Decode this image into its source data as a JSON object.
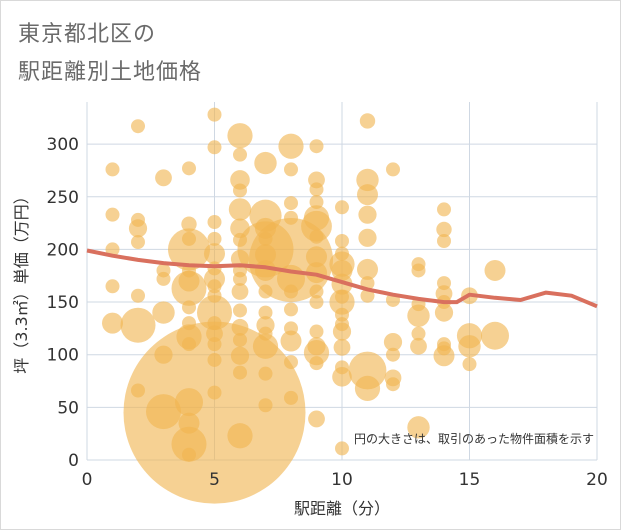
{
  "title_line1": "東京都北区の",
  "title_line2": "駅距離別土地価格",
  "chart_data": {
    "type": "scatter",
    "title": "東京都北区の駅距離別土地価格",
    "xlabel": "駅距離（分）",
    "ylabel": "坪（3.3㎡）単価（万円）",
    "xlim": [
      0,
      20
    ],
    "ylim": [
      0,
      340
    ],
    "xticks": [
      0,
      5,
      10,
      15,
      20
    ],
    "yticks": [
      0,
      50,
      100,
      150,
      200,
      250,
      300
    ],
    "grid": true,
    "note": "円の大きさは、取引のあった物件面積を示す",
    "bubble_color": "#f0b450",
    "line_color": "#d9705e",
    "points": [
      {
        "x": 1,
        "y": 276,
        "s": 1
      },
      {
        "x": 1,
        "y": 233,
        "s": 1
      },
      {
        "x": 1,
        "y": 200,
        "s": 1
      },
      {
        "x": 1,
        "y": 165,
        "s": 1
      },
      {
        "x": 1,
        "y": 130,
        "s": 1.5
      },
      {
        "x": 2,
        "y": 317,
        "s": 1
      },
      {
        "x": 2,
        "y": 228,
        "s": 1
      },
      {
        "x": 2,
        "y": 220,
        "s": 1.3
      },
      {
        "x": 2,
        "y": 207,
        "s": 1
      },
      {
        "x": 2,
        "y": 156,
        "s": 1
      },
      {
        "x": 2,
        "y": 128,
        "s": 2.5
      },
      {
        "x": 2,
        "y": 66,
        "s": 1
      },
      {
        "x": 3,
        "y": 268,
        "s": 1.2
      },
      {
        "x": 3,
        "y": 180,
        "s": 1
      },
      {
        "x": 3,
        "y": 172,
        "s": 1
      },
      {
        "x": 3,
        "y": 140,
        "s": 1.6
      },
      {
        "x": 3,
        "y": 100,
        "s": 1.3
      },
      {
        "x": 3,
        "y": 46,
        "s": 2.5
      },
      {
        "x": 4,
        "y": 277,
        "s": 1
      },
      {
        "x": 4,
        "y": 224,
        "s": 1.1
      },
      {
        "x": 4,
        "y": 210,
        "s": 1
      },
      {
        "x": 4,
        "y": 200,
        "s": 3
      },
      {
        "x": 4,
        "y": 180,
        "s": 1
      },
      {
        "x": 4,
        "y": 170,
        "s": 1.5
      },
      {
        "x": 4,
        "y": 163,
        "s": 2.5
      },
      {
        "x": 4,
        "y": 145,
        "s": 1
      },
      {
        "x": 4,
        "y": 130,
        "s": 1
      },
      {
        "x": 4,
        "y": 117,
        "s": 1.8
      },
      {
        "x": 4,
        "y": 110,
        "s": 1
      },
      {
        "x": 4,
        "y": 55,
        "s": 2
      },
      {
        "x": 4,
        "y": 35,
        "s": 1.5
      },
      {
        "x": 4,
        "y": 15,
        "s": 2.5
      },
      {
        "x": 4,
        "y": 5,
        "s": 1
      },
      {
        "x": 5,
        "y": 328,
        "s": 1
      },
      {
        "x": 5,
        "y": 297,
        "s": 1
      },
      {
        "x": 5,
        "y": 226,
        "s": 1
      },
      {
        "x": 5,
        "y": 210,
        "s": 1
      },
      {
        "x": 5,
        "y": 196,
        "s": 1.5
      },
      {
        "x": 5,
        "y": 182,
        "s": 1
      },
      {
        "x": 5,
        "y": 172,
        "s": 1.5
      },
      {
        "x": 5,
        "y": 165,
        "s": 1
      },
      {
        "x": 5,
        "y": 156,
        "s": 1
      },
      {
        "x": 5,
        "y": 140,
        "s": 2.5
      },
      {
        "x": 5,
        "y": 130,
        "s": 1
      },
      {
        "x": 5,
        "y": 120,
        "s": 1.2
      },
      {
        "x": 5,
        "y": 110,
        "s": 1
      },
      {
        "x": 5,
        "y": 95,
        "s": 1
      },
      {
        "x": 5,
        "y": 64,
        "s": 1
      },
      {
        "x": 5,
        "y": 45,
        "s": 13
      },
      {
        "x": 6,
        "y": 308,
        "s": 1.8
      },
      {
        "x": 6,
        "y": 290,
        "s": 1
      },
      {
        "x": 6,
        "y": 266,
        "s": 1.4
      },
      {
        "x": 6,
        "y": 256,
        "s": 1
      },
      {
        "x": 6,
        "y": 238,
        "s": 1.6
      },
      {
        "x": 6,
        "y": 220,
        "s": 1.4
      },
      {
        "x": 6,
        "y": 209,
        "s": 1
      },
      {
        "x": 6,
        "y": 191,
        "s": 1.3
      },
      {
        "x": 6,
        "y": 180,
        "s": 1
      },
      {
        "x": 6,
        "y": 172,
        "s": 1
      },
      {
        "x": 6,
        "y": 160,
        "s": 1.2
      },
      {
        "x": 6,
        "y": 142,
        "s": 1
      },
      {
        "x": 6,
        "y": 126,
        "s": 1.2
      },
      {
        "x": 6,
        "y": 114,
        "s": 1
      },
      {
        "x": 6,
        "y": 99,
        "s": 1.3
      },
      {
        "x": 6,
        "y": 83,
        "s": 1
      },
      {
        "x": 6,
        "y": 23,
        "s": 1.8
      },
      {
        "x": 7,
        "y": 282,
        "s": 1.6
      },
      {
        "x": 7,
        "y": 232,
        "s": 2.3
      },
      {
        "x": 7,
        "y": 220,
        "s": 1.5
      },
      {
        "x": 7,
        "y": 210,
        "s": 1
      },
      {
        "x": 7,
        "y": 200,
        "s": 4
      },
      {
        "x": 7,
        "y": 195,
        "s": 1.5
      },
      {
        "x": 7,
        "y": 180,
        "s": 1.5
      },
      {
        "x": 7,
        "y": 160,
        "s": 1
      },
      {
        "x": 7,
        "y": 140,
        "s": 1
      },
      {
        "x": 7,
        "y": 128,
        "s": 1.3
      },
      {
        "x": 7,
        "y": 120,
        "s": 1
      },
      {
        "x": 7,
        "y": 108,
        "s": 1.8
      },
      {
        "x": 7,
        "y": 82,
        "s": 1
      },
      {
        "x": 7,
        "y": 52,
        "s": 1
      },
      {
        "x": 8,
        "y": 298,
        "s": 1.8
      },
      {
        "x": 8,
        "y": 276,
        "s": 1
      },
      {
        "x": 8,
        "y": 244,
        "s": 1
      },
      {
        "x": 8,
        "y": 230,
        "s": 1
      },
      {
        "x": 8,
        "y": 190,
        "s": 6
      },
      {
        "x": 8,
        "y": 172,
        "s": 2
      },
      {
        "x": 8,
        "y": 160,
        "s": 1
      },
      {
        "x": 8,
        "y": 143,
        "s": 1
      },
      {
        "x": 8,
        "y": 125,
        "s": 1
      },
      {
        "x": 8,
        "y": 113,
        "s": 1.5
      },
      {
        "x": 8,
        "y": 93,
        "s": 1
      },
      {
        "x": 8,
        "y": 59,
        "s": 1
      },
      {
        "x": 9,
        "y": 298,
        "s": 1
      },
      {
        "x": 9,
        "y": 266,
        "s": 1.2
      },
      {
        "x": 9,
        "y": 257,
        "s": 1
      },
      {
        "x": 9,
        "y": 245,
        "s": 1
      },
      {
        "x": 9,
        "y": 230,
        "s": 1.8
      },
      {
        "x": 9,
        "y": 222,
        "s": 2.2
      },
      {
        "x": 9,
        "y": 212,
        "s": 1
      },
      {
        "x": 9,
        "y": 193,
        "s": 1.5
      },
      {
        "x": 9,
        "y": 178,
        "s": 1.5
      },
      {
        "x": 9,
        "y": 160,
        "s": 1
      },
      {
        "x": 9,
        "y": 150,
        "s": 1
      },
      {
        "x": 9,
        "y": 122,
        "s": 1
      },
      {
        "x": 9,
        "y": 108,
        "s": 1.3
      },
      {
        "x": 9,
        "y": 102,
        "s": 1.8
      },
      {
        "x": 9,
        "y": 92,
        "s": 1
      },
      {
        "x": 9,
        "y": 39,
        "s": 1.2
      },
      {
        "x": 10,
        "y": 240,
        "s": 1
      },
      {
        "x": 10,
        "y": 208,
        "s": 1
      },
      {
        "x": 10,
        "y": 196,
        "s": 1
      },
      {
        "x": 10,
        "y": 186,
        "s": 1.8
      },
      {
        "x": 10,
        "y": 180,
        "s": 1.5
      },
      {
        "x": 10,
        "y": 167,
        "s": 1.5
      },
      {
        "x": 10,
        "y": 155,
        "s": 1
      },
      {
        "x": 10,
        "y": 150,
        "s": 1.8
      },
      {
        "x": 10,
        "y": 138,
        "s": 1
      },
      {
        "x": 10,
        "y": 129,
        "s": 1
      },
      {
        "x": 10,
        "y": 122,
        "s": 1.3
      },
      {
        "x": 10,
        "y": 107,
        "s": 1.2
      },
      {
        "x": 10,
        "y": 88,
        "s": 1
      },
      {
        "x": 10,
        "y": 79,
        "s": 1.4
      },
      {
        "x": 10,
        "y": 11,
        "s": 1
      },
      {
        "x": 11,
        "y": 322,
        "s": 1.1
      },
      {
        "x": 11,
        "y": 266,
        "s": 1.6
      },
      {
        "x": 11,
        "y": 252,
        "s": 1.5
      },
      {
        "x": 11,
        "y": 233,
        "s": 1.3
      },
      {
        "x": 11,
        "y": 211,
        "s": 1.3
      },
      {
        "x": 11,
        "y": 181,
        "s": 1.5
      },
      {
        "x": 11,
        "y": 168,
        "s": 1
      },
      {
        "x": 11,
        "y": 156,
        "s": 1
      },
      {
        "x": 11,
        "y": 85,
        "s": 2.7
      },
      {
        "x": 11,
        "y": 68,
        "s": 1.8
      },
      {
        "x": 12,
        "y": 276,
        "s": 1
      },
      {
        "x": 12,
        "y": 152,
        "s": 1
      },
      {
        "x": 12,
        "y": 112,
        "s": 1.3
      },
      {
        "x": 12,
        "y": 100,
        "s": 1
      },
      {
        "x": 12,
        "y": 78,
        "s": 1.2
      },
      {
        "x": 12,
        "y": 72,
        "s": 1
      },
      {
        "x": 13,
        "y": 186,
        "s": 1
      },
      {
        "x": 13,
        "y": 180,
        "s": 1
      },
      {
        "x": 13,
        "y": 148,
        "s": 1
      },
      {
        "x": 13,
        "y": 137,
        "s": 1.6
      },
      {
        "x": 13,
        "y": 120,
        "s": 1
      },
      {
        "x": 13,
        "y": 108,
        "s": 1.2
      },
      {
        "x": 13,
        "y": 31,
        "s": 1.6
      },
      {
        "x": 14,
        "y": 238,
        "s": 1
      },
      {
        "x": 14,
        "y": 219,
        "s": 1.1
      },
      {
        "x": 14,
        "y": 208,
        "s": 1
      },
      {
        "x": 14,
        "y": 168,
        "s": 1
      },
      {
        "x": 14,
        "y": 158,
        "s": 1.2
      },
      {
        "x": 14,
        "y": 150,
        "s": 1
      },
      {
        "x": 14,
        "y": 140,
        "s": 1.3
      },
      {
        "x": 14,
        "y": 110,
        "s": 1
      },
      {
        "x": 14,
        "y": 106,
        "s": 1
      },
      {
        "x": 14,
        "y": 99,
        "s": 1.5
      },
      {
        "x": 15,
        "y": 156,
        "s": 1.2
      },
      {
        "x": 15,
        "y": 118,
        "s": 1.8
      },
      {
        "x": 15,
        "y": 108,
        "s": 1.6
      },
      {
        "x": 15,
        "y": 91,
        "s": 1
      },
      {
        "x": 16,
        "y": 180,
        "s": 1.5
      },
      {
        "x": 16,
        "y": 118,
        "s": 2
      }
    ],
    "series": [
      {
        "name": "trend",
        "x": [
          0,
          1,
          2,
          3,
          4,
          5,
          6,
          7,
          8,
          9,
          10,
          11,
          12,
          13,
          14,
          14.5,
          15,
          16,
          17,
          18,
          19,
          20
        ],
        "values": [
          199,
          194,
          190,
          187,
          185,
          184,
          185,
          183,
          179,
          176,
          169,
          162,
          157,
          153,
          150,
          150,
          157,
          154,
          152,
          159,
          156,
          146
        ]
      }
    ]
  }
}
